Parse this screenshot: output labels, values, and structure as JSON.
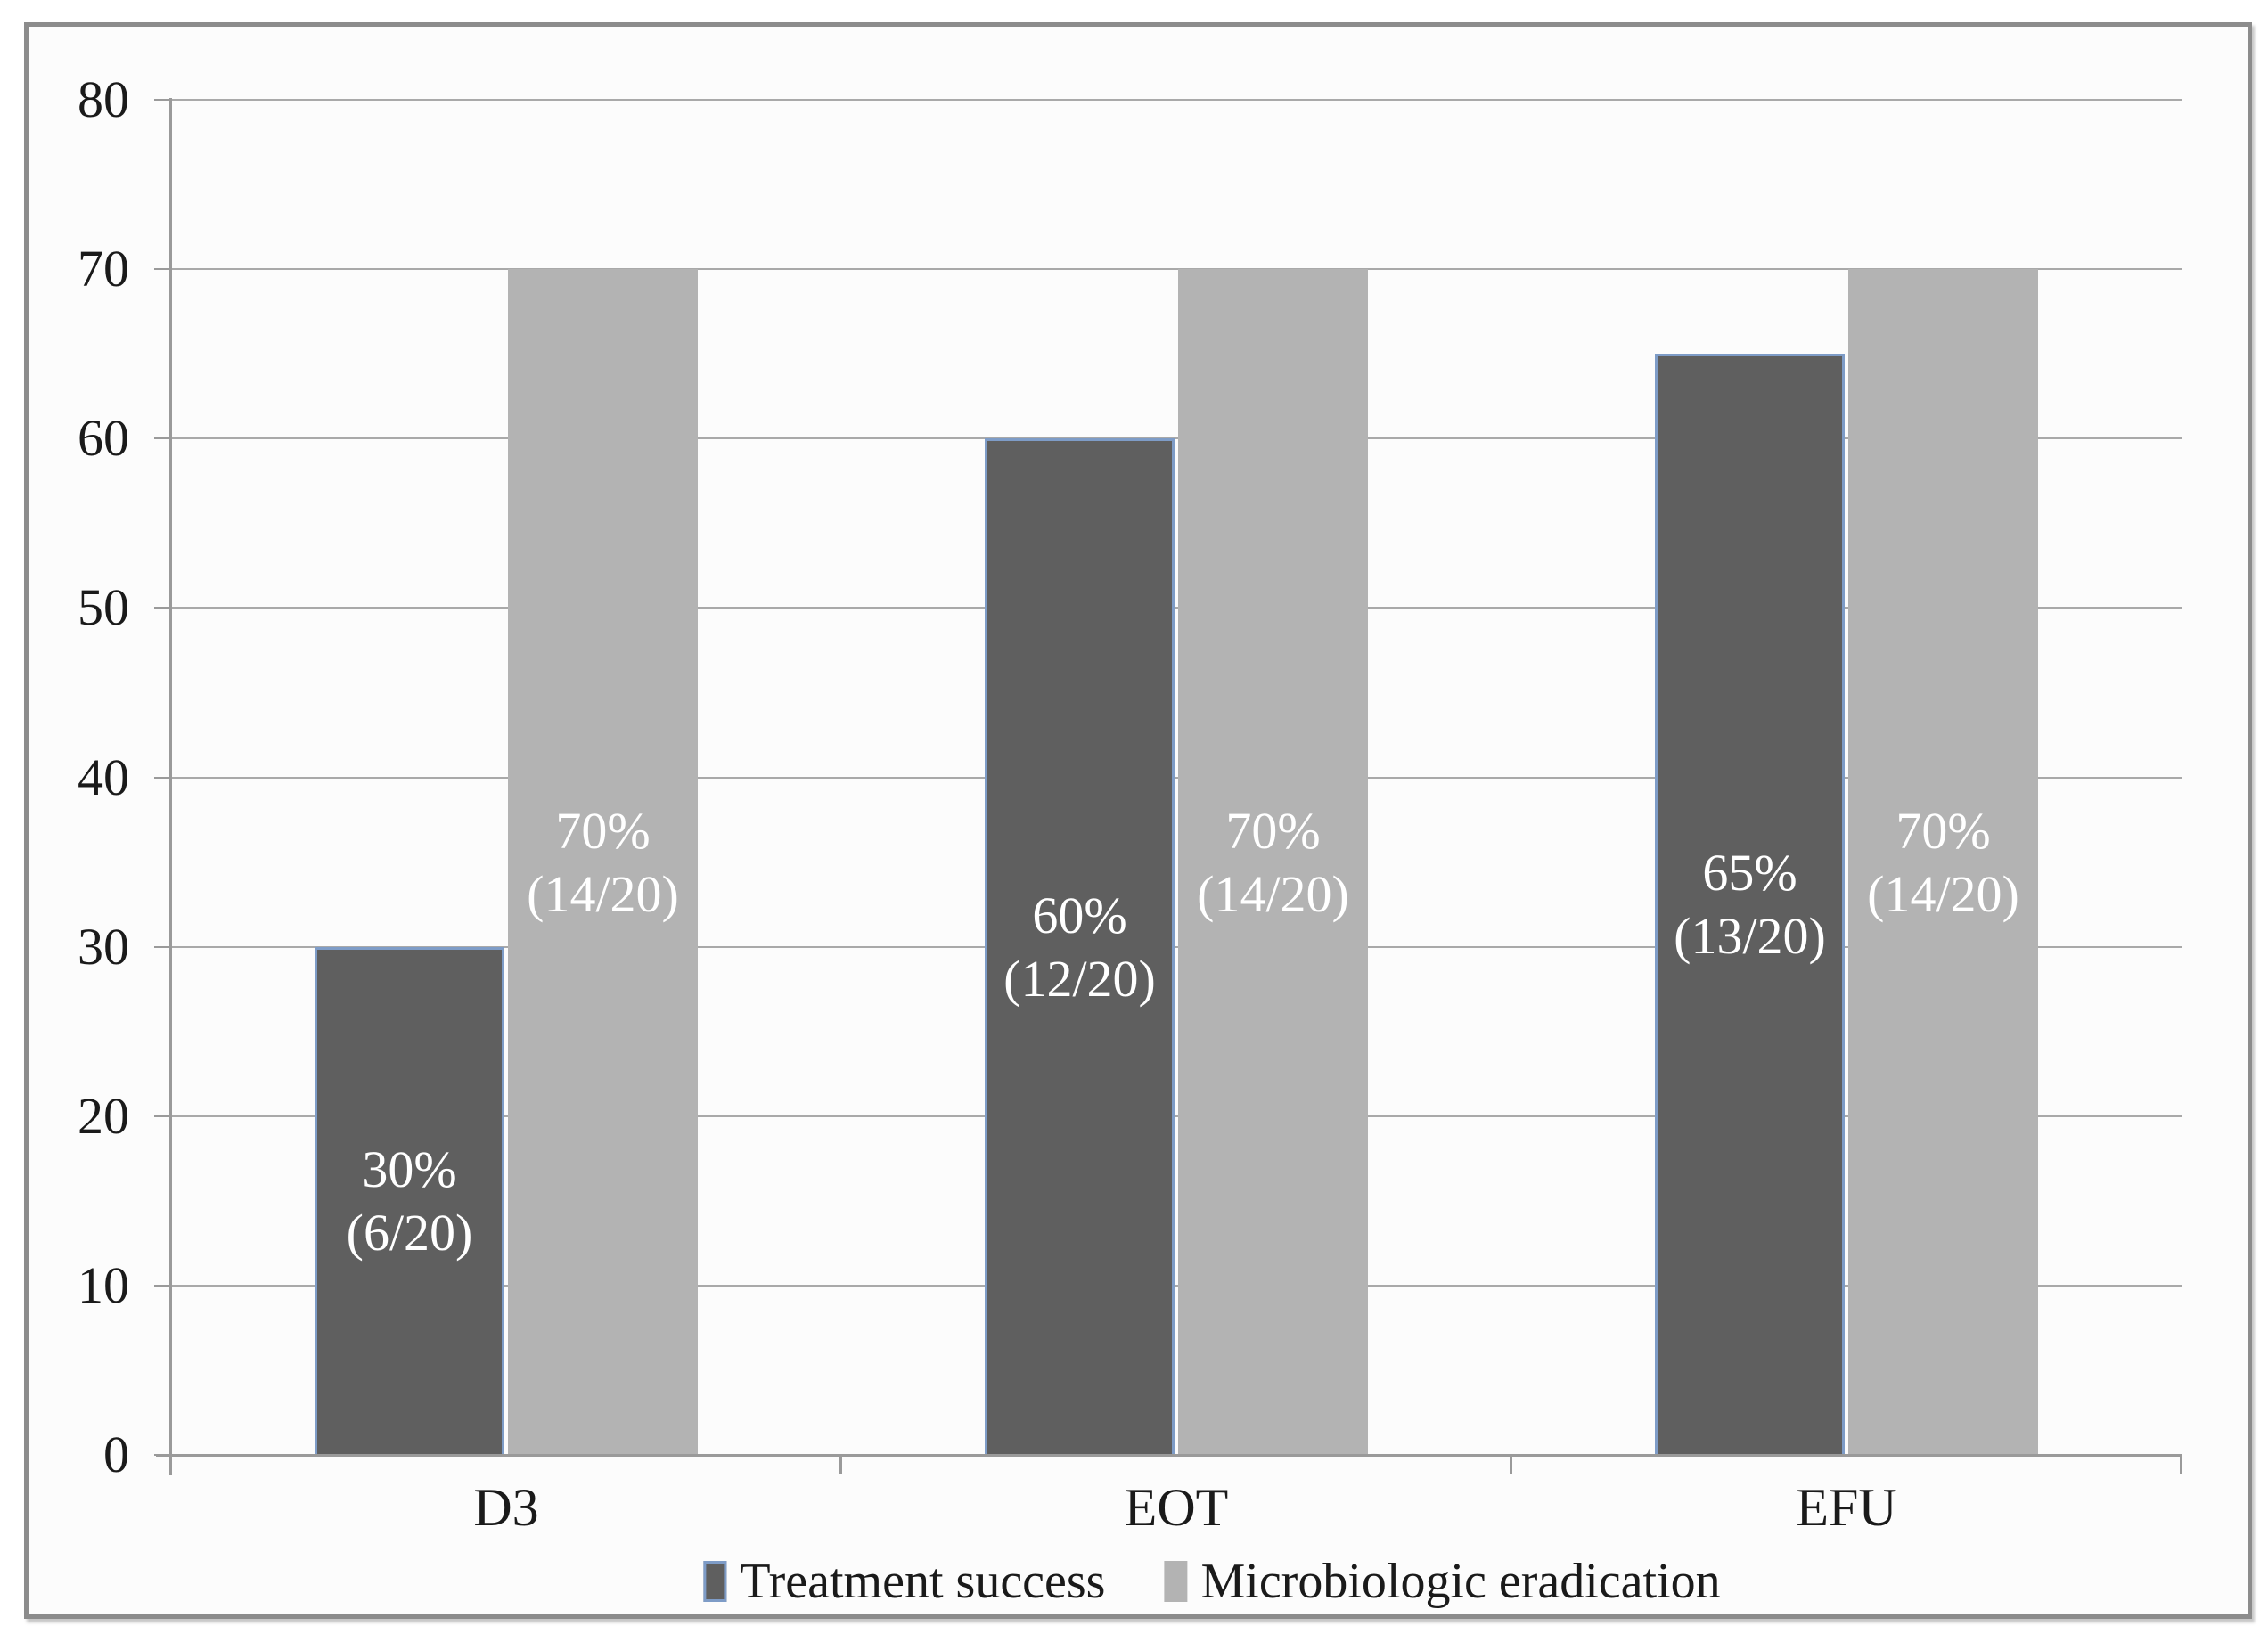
{
  "chart_data": {
    "type": "bar",
    "title": "",
    "xlabel": "",
    "ylabel": "",
    "categories": [
      "D3",
      "EOT",
      "EFU"
    ],
    "series": [
      {
        "name": "Treatment success",
        "values": [
          30,
          60,
          65
        ],
        "bar_labels": [
          [
            "30%",
            "(6/20)"
          ],
          [
            "60%",
            "(12/20)"
          ],
          [
            "65%",
            "(13/20)"
          ]
        ],
        "fill": "#5F5F5F",
        "border": "#7E9CC7"
      },
      {
        "name": "Microbiologic eradication",
        "values": [
          70,
          70,
          70
        ],
        "bar_labels": [
          [
            "70%",
            "(14/20)"
          ],
          [
            "70%",
            "(14/20)"
          ],
          [
            "70%",
            "(14/20)"
          ]
        ],
        "fill": "#B3B3B3",
        "border": "#B3B3B3"
      }
    ],
    "ylim": [
      0,
      80
    ],
    "yticks": [
      0,
      10,
      20,
      30,
      40,
      50,
      60,
      70,
      80
    ],
    "grid": true,
    "legend_position": "bottom",
    "colors": {
      "gridline": "#A9A9A9",
      "axis": "#9A9A9A",
      "tick_text": "#1A1A1A",
      "bar_label_text": "#FFFFFF",
      "frame": "#8C8C8C",
      "plot_background": "#FCFCFC"
    }
  }
}
